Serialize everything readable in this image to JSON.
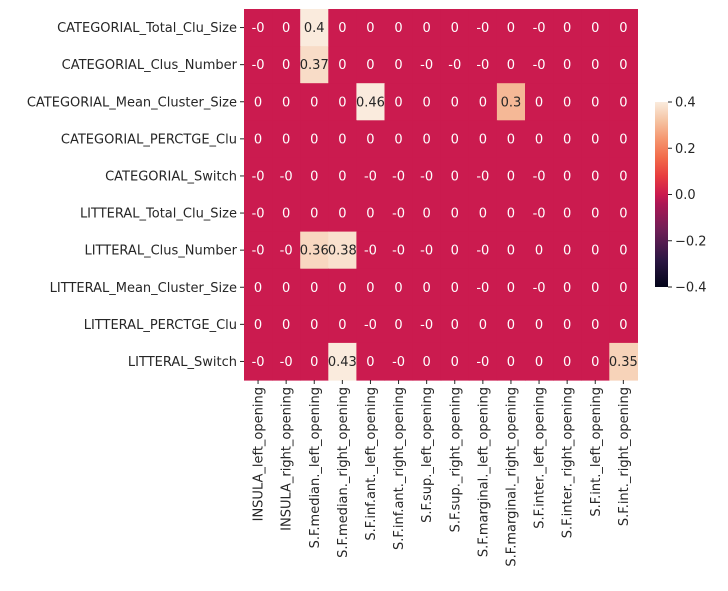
{
  "chart_data": {
    "type": "heatmap",
    "title": "",
    "xlabel": "",
    "ylabel": "",
    "rows": [
      "CATEGORIAL_Total_Clu_Size",
      "CATEGORIAL_Clus_Number",
      "CATEGORIAL_Mean_Cluster_Size",
      "CATEGORIAL_PERCTGE_Clu",
      "CATEGORIAL_Switch",
      "LITTERAL_Total_Clu_Size",
      "LITTERAL_Clus_Number",
      "LITTERAL_Mean_Cluster_Size",
      "LITTERAL_PERCTGE_Clu",
      "LITTERAL_Switch"
    ],
    "columns": [
      "INSULA_left_opening",
      "INSULA_right_opening",
      "S.F.median._left_opening",
      "S.F.median._right_opening",
      "S.F.inf.ant._left_opening",
      "S.F.inf.ant._right_opening",
      "S.F.sup._left_opening",
      "S.F.sup._right_opening",
      "S.F.marginal._left_opening",
      "S.F.marginal._right_opening",
      "S.F.inter._left_opening",
      "S.F.inter._right_opening",
      "S.F.int._left_opening",
      "S.F.int._right_opening"
    ],
    "values": [
      [
        -0.0,
        0.0,
        0.4,
        0.0,
        0.0,
        0.0,
        0.0,
        0.0,
        -0.0,
        0.0,
        -0.0,
        0.0,
        0.0,
        0.0
      ],
      [
        -0.0,
        0.0,
        0.37,
        0.0,
        0.0,
        0.0,
        -0.0,
        -0.0,
        -0.0,
        0.0,
        -0.0,
        0.0,
        0.0,
        0.0
      ],
      [
        0.0,
        0.0,
        0.0,
        0.0,
        0.46,
        0.0,
        0.0,
        0.0,
        0.0,
        0.3,
        0.0,
        0.0,
        0.0,
        0.0
      ],
      [
        0.0,
        0.0,
        0.0,
        0.0,
        0.0,
        0.0,
        0.0,
        0.0,
        0.0,
        0.0,
        0.0,
        0.0,
        0.0,
        0.0
      ],
      [
        -0.0,
        -0.0,
        0.0,
        0.0,
        -0.0,
        -0.0,
        -0.0,
        0.0,
        -0.0,
        0.0,
        -0.0,
        0.0,
        0.0,
        0.0
      ],
      [
        -0.0,
        0.0,
        0.0,
        0.0,
        0.0,
        -0.0,
        0.0,
        0.0,
        0.0,
        0.0,
        -0.0,
        0.0,
        0.0,
        0.0
      ],
      [
        -0.0,
        -0.0,
        0.36,
        0.38,
        -0.0,
        -0.0,
        -0.0,
        0.0,
        -0.0,
        0.0,
        0.0,
        0.0,
        0.0,
        0.0
      ],
      [
        0.0,
        0.0,
        0.0,
        0.0,
        0.0,
        0.0,
        0.0,
        0.0,
        -0.0,
        0.0,
        -0.0,
        0.0,
        0.0,
        0.0
      ],
      [
        0.0,
        0.0,
        0.0,
        0.0,
        -0.0,
        0.0,
        -0.0,
        0.0,
        0.0,
        0.0,
        0.0,
        0.0,
        0.0,
        0.0
      ],
      [
        -0.0,
        -0.0,
        0.0,
        0.43,
        0.0,
        -0.0,
        0.0,
        0.0,
        -0.0,
        0.0,
        0.0,
        0.0,
        0.0,
        0.35
      ]
    ],
    "annotations": [
      [
        "-0",
        "0",
        "0.4",
        "0",
        "0",
        "0",
        "0",
        "0",
        "-0",
        "0",
        "-0",
        "0",
        "0",
        "0"
      ],
      [
        "-0",
        "0",
        "0.37",
        "0",
        "0",
        "0",
        "-0",
        "-0",
        "-0",
        "0",
        "-0",
        "0",
        "0",
        "0"
      ],
      [
        "0",
        "0",
        "0",
        "0",
        "0.46",
        "0",
        "0",
        "0",
        "0",
        "0.3",
        "0",
        "0",
        "0",
        "0"
      ],
      [
        "0",
        "0",
        "0",
        "0",
        "0",
        "0",
        "0",
        "0",
        "0",
        "0",
        "0",
        "0",
        "0",
        "0"
      ],
      [
        "-0",
        "-0",
        "0",
        "0",
        "-0",
        "-0",
        "-0",
        "0",
        "-0",
        "0",
        "-0",
        "0",
        "0",
        "0"
      ],
      [
        "-0",
        "0",
        "0",
        "0",
        "0",
        "-0",
        "0",
        "0",
        "0",
        "0",
        "-0",
        "0",
        "0",
        "0"
      ],
      [
        "-0",
        "-0",
        "0.36",
        "0.38",
        "-0",
        "-0",
        "-0",
        "0",
        "-0",
        "0",
        "0",
        "0",
        "0",
        "0"
      ],
      [
        "0",
        "0",
        "0",
        "0",
        "0",
        "0",
        "0",
        "0",
        "-0",
        "0",
        "-0",
        "0",
        "0",
        "0"
      ],
      [
        "0",
        "0",
        "0",
        "0",
        "-0",
        "0",
        "-0",
        "0",
        "0",
        "0",
        "0",
        "0",
        "0",
        "0"
      ],
      [
        "-0",
        "-0",
        "0",
        "0.43",
        "0",
        "-0",
        "0",
        "0",
        "-0",
        "0",
        "0",
        "0",
        "0",
        "0.35"
      ]
    ],
    "colorbar": {
      "colormap": "rocket",
      "vmin": -0.4,
      "vmax": 0.4,
      "ticks": [
        "0.4",
        "0.2",
        "0.0",
        "−0.2",
        "−0.4"
      ],
      "tick_values": [
        0.4,
        0.2,
        0.0,
        -0.2,
        -0.4
      ]
    },
    "grid": false,
    "colors": {
      "zero": "#cb1b4f",
      "max": "#faebdd",
      "min": "#03051a"
    }
  }
}
